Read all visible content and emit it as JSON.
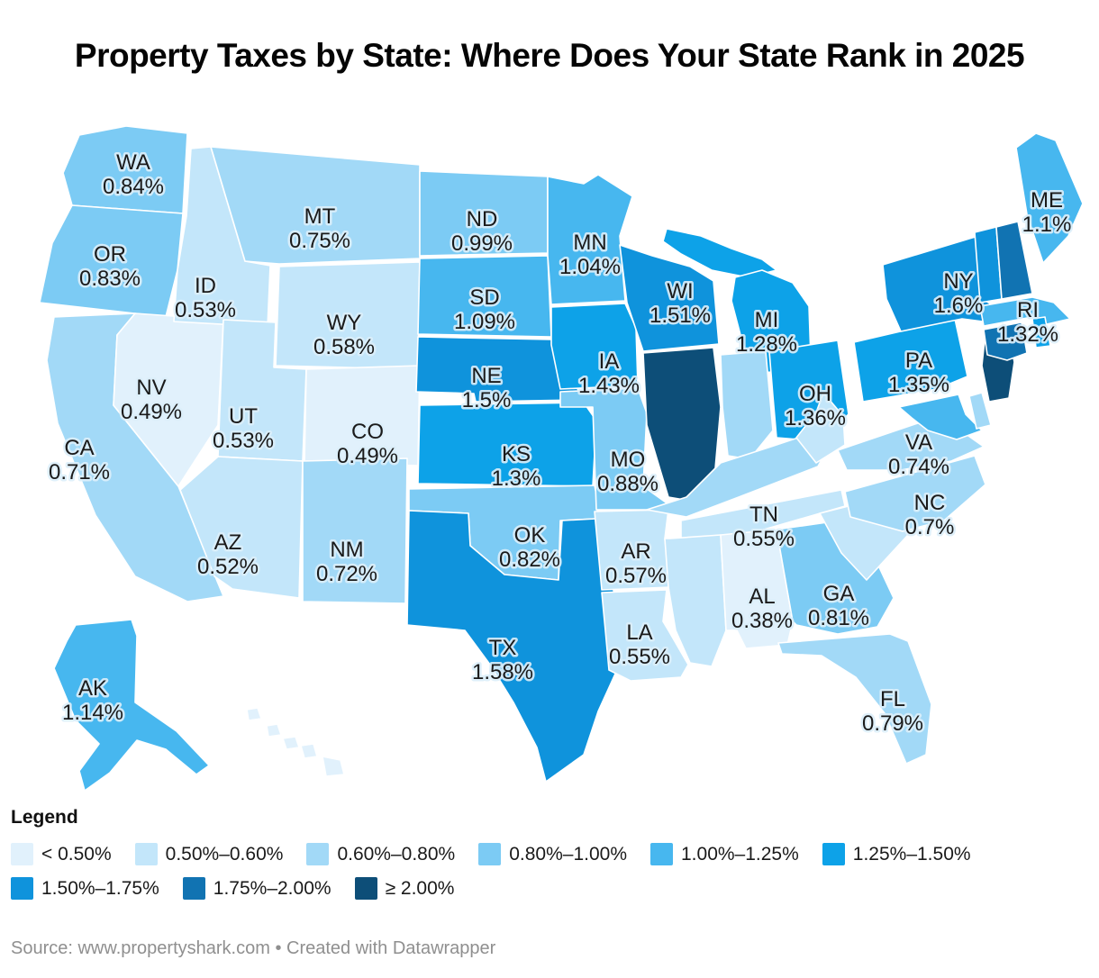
{
  "title": "Property Taxes by State: Where Does Your State Rank in 2025",
  "legend": {
    "heading": "Legend",
    "bins": [
      {
        "label": "< 0.50%",
        "color": "#E1F1FC"
      },
      {
        "label": "0.50%–0.60%",
        "color": "#C3E6FA"
      },
      {
        "label": "0.60%–0.80%",
        "color": "#A2D9F7"
      },
      {
        "label": "0.80%–1.00%",
        "color": "#7CCBF4"
      },
      {
        "label": "1.00%–1.25%",
        "color": "#47B7EF"
      },
      {
        "label": "1.25%–1.50%",
        "color": "#0DA2E8"
      },
      {
        "label": "1.50%–1.75%",
        "color": "#0F93DC"
      },
      {
        "label": "1.75%–2.00%",
        "color": "#1173B2"
      },
      {
        "label": "≥ 2.00%",
        "color": "#0D4E78"
      }
    ]
  },
  "source": "Source: www.propertyshark.com • Created with Datawrapper",
  "chart_data": {
    "type": "choropleth-map",
    "region": "United States",
    "value_unit": "effective property tax rate (%)",
    "legend_position": "bottom-left",
    "states": [
      {
        "abbr": "WA",
        "value": "0.84%",
        "bin": 4
      },
      {
        "abbr": "OR",
        "value": "0.83%",
        "bin": 4
      },
      {
        "abbr": "CA",
        "value": "0.71%",
        "bin": 3
      },
      {
        "abbr": "NV",
        "value": "0.49%",
        "bin": 1
      },
      {
        "abbr": "ID",
        "value": "0.53%",
        "bin": 2
      },
      {
        "abbr": "MT",
        "value": "0.75%",
        "bin": 3
      },
      {
        "abbr": "WY",
        "value": "0.58%",
        "bin": 2
      },
      {
        "abbr": "UT",
        "value": "0.53%",
        "bin": 2
      },
      {
        "abbr": "CO",
        "value": "0.49%",
        "bin": 1
      },
      {
        "abbr": "AZ",
        "value": "0.52%",
        "bin": 2
      },
      {
        "abbr": "NM",
        "value": "0.72%",
        "bin": 3
      },
      {
        "abbr": "ND",
        "value": "0.99%",
        "bin": 4
      },
      {
        "abbr": "SD",
        "value": "1.09%",
        "bin": 5
      },
      {
        "abbr": "NE",
        "value": "1.5%",
        "bin": 7
      },
      {
        "abbr": "KS",
        "value": "1.3%",
        "bin": 6
      },
      {
        "abbr": "OK",
        "value": "0.82%",
        "bin": 4
      },
      {
        "abbr": "TX",
        "value": "1.58%",
        "bin": 7
      },
      {
        "abbr": "MN",
        "value": "1.04%",
        "bin": 5
      },
      {
        "abbr": "IA",
        "value": "1.43%",
        "bin": 6
      },
      {
        "abbr": "MO",
        "value": "0.88%",
        "bin": 4
      },
      {
        "abbr": "AR",
        "value": "0.57%",
        "bin": 2
      },
      {
        "abbr": "LA",
        "value": "0.55%",
        "bin": 2
      },
      {
        "abbr": "WI",
        "value": "1.51%",
        "bin": 7
      },
      {
        "abbr": "IL",
        "value": null,
        "bin": 9
      },
      {
        "abbr": "MI",
        "value": "1.28%",
        "bin": 6
      },
      {
        "abbr": "IN",
        "value": null,
        "bin": 3
      },
      {
        "abbr": "OH",
        "value": "1.36%",
        "bin": 6
      },
      {
        "abbr": "KY",
        "value": null,
        "bin": 3
      },
      {
        "abbr": "TN",
        "value": "0.55%",
        "bin": 2
      },
      {
        "abbr": "MS",
        "value": null,
        "bin": 2
      },
      {
        "abbr": "AL",
        "value": "0.38%",
        "bin": 1
      },
      {
        "abbr": "GA",
        "value": "0.81%",
        "bin": 4
      },
      {
        "abbr": "FL",
        "value": "0.79%",
        "bin": 3
      },
      {
        "abbr": "SC",
        "value": null,
        "bin": 2
      },
      {
        "abbr": "NC",
        "value": "0.7%",
        "bin": 3
      },
      {
        "abbr": "VA",
        "value": "0.74%",
        "bin": 3
      },
      {
        "abbr": "WV",
        "value": null,
        "bin": 2
      },
      {
        "abbr": "MD",
        "value": null,
        "bin": 5
      },
      {
        "abbr": "DE",
        "value": null,
        "bin": 3
      },
      {
        "abbr": "PA",
        "value": "1.35%",
        "bin": 6
      },
      {
        "abbr": "NJ",
        "value": null,
        "bin": 9
      },
      {
        "abbr": "NY",
        "value": "1.6%",
        "bin": 7
      },
      {
        "abbr": "VT",
        "value": null,
        "bin": 7
      },
      {
        "abbr": "NH",
        "value": null,
        "bin": 8
      },
      {
        "abbr": "MA",
        "value": null,
        "bin": 5
      },
      {
        "abbr": "CT",
        "value": null,
        "bin": 8
      },
      {
        "abbr": "RI",
        "value": "1.32%",
        "bin": 6
      },
      {
        "abbr": "ME",
        "value": "1.1%",
        "bin": 5
      },
      {
        "abbr": "AK",
        "value": "1.14%",
        "bin": 5
      },
      {
        "abbr": "HI",
        "value": null,
        "bin": 1
      }
    ]
  }
}
